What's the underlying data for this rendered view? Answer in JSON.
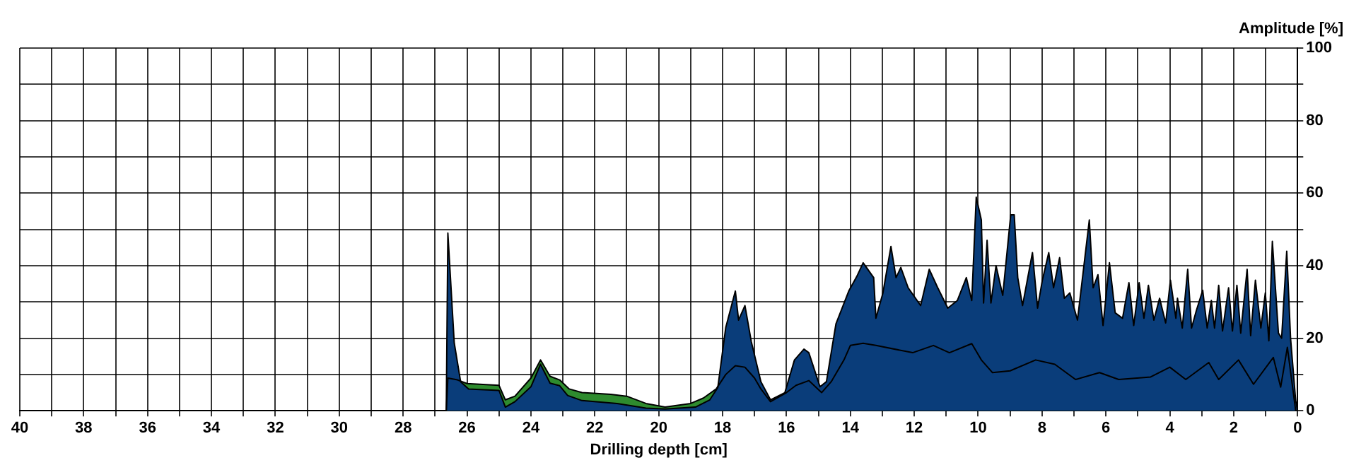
{
  "chart_data": {
    "type": "area",
    "xlabel": "Drilling depth [cm]",
    "ylabel": "Amplitude [%]",
    "xlim": [
      40,
      0
    ],
    "xticks": [
      40,
      {
        "value": 39,
        "label": null
      },
      38,
      {
        "value": 37,
        "label": null
      },
      36,
      {
        "value": 35,
        "label": null
      },
      34,
      {
        "value": 33,
        "label": null
      },
      32,
      {
        "value": 31,
        "label": null
      },
      30,
      {
        "value": 29,
        "label": null
      },
      28,
      {
        "value": 27,
        "label": null
      },
      26,
      {
        "value": 25,
        "label": null
      },
      24,
      {
        "value": 23,
        "label": null
      },
      22,
      {
        "value": 21,
        "label": null
      },
      20,
      {
        "value": 19,
        "label": null
      },
      18,
      {
        "value": 17,
        "label": null
      },
      16,
      {
        "value": 15,
        "label": null
      },
      14,
      {
        "value": 13,
        "label": null
      },
      12,
      {
        "value": 11,
        "label": null
      },
      10,
      {
        "value": 9,
        "label": null
      },
      8,
      {
        "value": 7,
        "label": null
      },
      6,
      {
        "value": 5,
        "label": null
      },
      4,
      {
        "value": 3,
        "label": null
      },
      2,
      {
        "value": 1,
        "label": null
      },
      0
    ],
    "ylim": [
      0,
      100
    ],
    "yticks": [
      0,
      {
        "value": 10,
        "label": null
      },
      20,
      {
        "value": 30,
        "label": null
      },
      40,
      {
        "value": 50,
        "label": null
      },
      60,
      {
        "value": 70,
        "label": null
      },
      80,
      {
        "value": 90,
        "label": null
      },
      100
    ],
    "grid": true,
    "legend": false,
    "marker": "none",
    "line_style": "solid",
    "series": [
      {
        "color": "#0a3d7a",
        "x": [
          26.65,
          26.6,
          26.4,
          26.2,
          25.95,
          25.0,
          24.8,
          24.5,
          24.0,
          23.7,
          23.4,
          23.1,
          22.85,
          22.4,
          21.3,
          20.4,
          19.8,
          18.85,
          18.4,
          18.15,
          17.9,
          17.6,
          17.5,
          17.3,
          17.1,
          16.8,
          16.5,
          16.05,
          15.75,
          15.45,
          15.3,
          14.95,
          14.75,
          14.45,
          14.05,
          13.8,
          13.6,
          13.27,
          13.2,
          12.98,
          12.73,
          12.57,
          12.42,
          12.19,
          11.8,
          11.53,
          11.27,
          10.95,
          10.65,
          10.37,
          10.2,
          10.06,
          9.9,
          9.83,
          9.72,
          9.6,
          9.44,
          9.23,
          8.98,
          8.87,
          8.76,
          8.61,
          8.3,
          8.14,
          7.99,
          7.79,
          7.64,
          7.45,
          7.3,
          7.13,
          6.89,
          6.52,
          6.4,
          6.25,
          6.09,
          5.89,
          5.71,
          5.48,
          5.28,
          5.13,
          4.96,
          4.81,
          4.67,
          4.5,
          4.32,
          4.13,
          3.98,
          3.81,
          3.76,
          3.61,
          3.44,
          3.32,
          3.17,
          2.97,
          2.83,
          2.7,
          2.6,
          2.47,
          2.35,
          2.16,
          2.04,
          1.9,
          1.78,
          1.58,
          1.47,
          1.32,
          1.15,
          1.01,
          0.9,
          0.79,
          0.6,
          0.5,
          0.34,
          0.22,
          0.06,
          0
        ],
        "values": [
          0,
          49,
          18.7,
          8,
          6,
          5.6,
          1,
          2.5,
          6.6,
          12.8,
          7.6,
          6.9,
          4.2,
          2.8,
          2,
          0.7,
          0.5,
          1,
          3,
          6.4,
          23,
          33,
          25,
          29,
          19,
          8,
          3,
          5,
          14,
          17,
          16,
          6.6,
          8,
          24,
          33,
          37,
          40.8,
          36.7,
          25.5,
          32.5,
          45.3,
          36.7,
          39.5,
          33.9,
          29,
          39,
          34,
          28.3,
          30.4,
          36.7,
          30.4,
          58.9,
          52.6,
          29.7,
          47,
          29.7,
          40,
          31.8,
          54,
          54,
          36.7,
          29,
          43.6,
          28.3,
          36,
          43.6,
          33.9,
          42.2,
          31,
          32.5,
          25,
          52.6,
          33.9,
          37.5,
          23.5,
          40.8,
          27,
          25.5,
          35.3,
          23.5,
          35.3,
          25.5,
          34.6,
          25,
          31,
          24.2,
          36,
          25.5,
          31,
          22.8,
          39,
          22.8,
          27.6,
          33.2,
          22.8,
          30.4,
          22.8,
          34.6,
          22,
          33.9,
          22,
          34.6,
          21.4,
          39,
          20.7,
          36,
          22.8,
          32.5,
          19.3,
          46.7,
          21.4,
          20,
          44,
          20,
          2.8,
          0
        ]
      },
      {
        "color": "#2e8b2e",
        "x": [
          26.65,
          26.6,
          26.3,
          26.0,
          25.0,
          24.8,
          24.5,
          24.0,
          23.7,
          23.4,
          23.1,
          22.8,
          22.4,
          21.5,
          21.0,
          20.4,
          19.8,
          19.0,
          18.6,
          18.2,
          17.9,
          17.6,
          17.3,
          17.0,
          16.8,
          16.5,
          16.0,
          15.7,
          15.3,
          14.9,
          14.6,
          14.2,
          14.0,
          13.6,
          13.2,
          12.05,
          11.4,
          10.9,
          10.2,
          9.9,
          9.55,
          9.0,
          8.2,
          7.6,
          6.95,
          6.2,
          5.6,
          4.6,
          4.0,
          3.5,
          2.78,
          2.47,
          1.85,
          1.38,
          0.76,
          0.53,
          0.32,
          0.06,
          0
        ],
        "values": [
          0,
          9,
          8.5,
          7.5,
          7,
          3,
          4,
          9,
          14,
          9.5,
          8.5,
          6,
          5,
          4.5,
          4,
          2,
          1,
          2,
          3.5,
          6,
          10,
          12.4,
          12,
          9,
          6,
          2.5,
          5,
          7,
          8.3,
          5,
          8,
          14,
          18,
          18.6,
          18,
          16,
          18,
          16,
          18.5,
          14,
          10.5,
          11,
          14,
          12.8,
          8.6,
          10.5,
          8.6,
          9.3,
          12,
          8.6,
          13.3,
          8.6,
          14,
          7.3,
          14.7,
          6.5,
          17.5,
          0,
          0
        ]
      }
    ]
  }
}
